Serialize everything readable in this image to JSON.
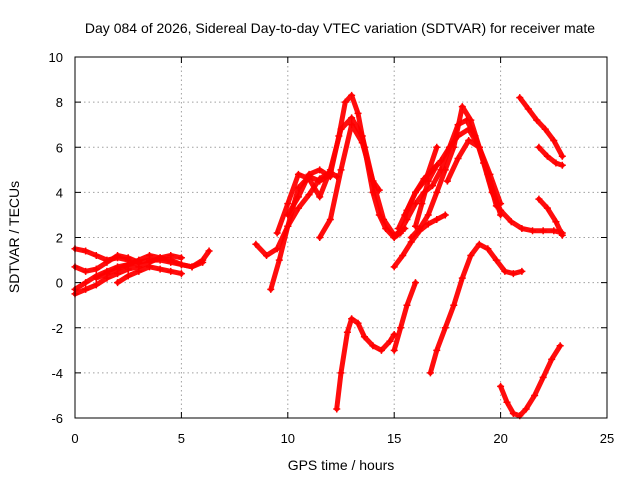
{
  "chart_data": {
    "type": "scatter",
    "title": "Day 084 of 2026, Sidereal Day-to-day VTEC variation (SDTVAR) for receiver mate",
    "xlabel": "GPS time / hours",
    "ylabel": "SDTVAR / TECUs",
    "xlim": [
      0,
      25
    ],
    "ylim": [
      -6,
      10
    ],
    "xticks": [
      0,
      5,
      10,
      15,
      20,
      25
    ],
    "yticks": [
      -6,
      -4,
      -2,
      0,
      2,
      4,
      6,
      8,
      10
    ],
    "grid": true,
    "marker": "plus",
    "color": "#ff0000",
    "series": [
      {
        "x": [
          0.0,
          0.5,
          1.0,
          1.5,
          2.0,
          2.5
        ],
        "y": [
          1.5,
          1.4,
          1.2,
          1.0,
          1.1,
          1.0
        ]
      },
      {
        "x": [
          0.0,
          0.5,
          1.0,
          1.5,
          2.0,
          2.5,
          3.0
        ],
        "y": [
          0.7,
          0.5,
          0.6,
          0.9,
          1.2,
          1.1,
          0.9
        ]
      },
      {
        "x": [
          0.0,
          0.5,
          1.0,
          1.5,
          2.0,
          2.5,
          3.0,
          3.5,
          4.0,
          4.5,
          5.0,
          5.5,
          6.0,
          6.3
        ],
        "y": [
          -0.3,
          0.0,
          0.3,
          0.5,
          0.7,
          0.8,
          0.9,
          1.0,
          1.0,
          0.9,
          0.8,
          0.7,
          1.0,
          1.4
        ]
      },
      {
        "x": [
          0.0,
          0.5,
          1.0,
          1.5,
          2.0,
          2.5,
          3.0,
          3.5,
          4.0,
          4.5,
          5.0
        ],
        "y": [
          -0.5,
          -0.3,
          -0.1,
          0.2,
          0.4,
          0.6,
          0.7,
          0.9,
          1.1,
          1.2,
          1.1
        ]
      },
      {
        "x": [
          1.0,
          1.5,
          2.0,
          2.5,
          3.0,
          3.5,
          4.0,
          4.5,
          5.0,
          5.5,
          6.0
        ],
        "y": [
          0.2,
          0.4,
          0.6,
          0.8,
          1.0,
          1.2,
          1.1,
          1.0,
          0.8,
          0.7,
          0.9
        ]
      },
      {
        "x": [
          2.0,
          2.5,
          3.0,
          3.5,
          4.0,
          4.5,
          5.0
        ],
        "y": [
          0.0,
          0.3,
          0.5,
          0.7,
          0.6,
          0.5,
          0.4
        ]
      },
      {
        "x": [
          8.5,
          9.0,
          9.5,
          10.0,
          10.5,
          11.0,
          11.5,
          12.0,
          12.3
        ],
        "y": [
          1.7,
          1.2,
          1.5,
          2.5,
          3.3,
          3.9,
          4.6,
          4.9,
          4.7
        ]
      },
      {
        "x": [
          9.2,
          9.6,
          10.0,
          10.5,
          11.0,
          11.5,
          12.0,
          12.4,
          12.7,
          13.0,
          13.3,
          13.6,
          14.0,
          14.3,
          14.6,
          15.0,
          15.3
        ],
        "y": [
          -0.3,
          1.0,
          2.5,
          4.2,
          4.7,
          4.5,
          4.8,
          6.5,
          8.0,
          8.3,
          7.5,
          6.0,
          4.0,
          3.0,
          2.4,
          2.0,
          2.2
        ]
      },
      {
        "x": [
          9.5,
          10.0,
          10.5,
          11.0,
          11.5,
          12.0,
          12.5,
          13.0,
          13.5,
          14.0,
          14.5,
          15.0,
          15.5
        ],
        "y": [
          2.2,
          3.5,
          4.8,
          4.6,
          3.8,
          5.0,
          6.8,
          7.3,
          6.5,
          4.5,
          2.8,
          2.1,
          2.4
        ]
      },
      {
        "x": [
          11.5,
          12.0,
          12.5,
          13.0,
          13.5,
          14.0,
          14.3
        ],
        "y": [
          2.0,
          2.8,
          5.0,
          7.0,
          6.2,
          4.5,
          4.1
        ]
      },
      {
        "x": [
          10.0,
          10.5,
          11.0,
          11.5,
          12.0
        ],
        "y": [
          3.0,
          3.8,
          4.8,
          5.0,
          4.7
        ]
      },
      {
        "x": [
          12.3,
          12.5,
          12.8,
          13.0,
          13.3,
          13.6,
          14.0,
          14.4,
          14.8,
          15.0
        ],
        "y": [
          -5.6,
          -4.0,
          -2.2,
          -1.6,
          -1.8,
          -2.4,
          -2.8,
          -3.0,
          -2.6,
          -2.3
        ]
      },
      {
        "x": [
          15.0,
          15.3,
          15.6,
          16.0,
          16.4,
          16.8,
          17.2,
          17.6,
          18.0,
          18.4,
          18.8,
          19.2,
          19.6,
          20.0,
          20.5,
          21.0,
          21.5,
          22.0,
          22.5,
          22.9
        ],
        "y": [
          2.0,
          2.3,
          2.8,
          3.5,
          4.0,
          4.3,
          5.0,
          6.0,
          7.0,
          7.2,
          6.5,
          5.3,
          4.0,
          3.2,
          2.7,
          2.4,
          2.3,
          2.3,
          2.3,
          2.2
        ]
      },
      {
        "x": [
          15.2,
          15.6,
          16.0,
          16.4,
          16.8,
          17.2,
          17.6,
          18.0,
          18.5,
          19.0,
          19.5,
          20.0
        ],
        "y": [
          2.4,
          3.2,
          4.0,
          4.6,
          5.0,
          5.4,
          6.0,
          6.5,
          6.8,
          6.0,
          4.5,
          3.0
        ]
      },
      {
        "x": [
          17.5,
          18.0,
          18.5,
          19.0,
          19.5,
          20.0
        ],
        "y": [
          4.5,
          5.5,
          6.3,
          6.0,
          4.8,
          3.5
        ]
      },
      {
        "x": [
          15.8,
          16.2,
          16.6,
          17.0,
          17.4,
          17.8,
          18.2,
          18.6,
          19.0,
          19.4,
          19.8
        ],
        "y": [
          2.0,
          2.4,
          3.0,
          4.0,
          5.0,
          6.0,
          7.8,
          7.2,
          6.0,
          4.8,
          3.4
        ]
      },
      {
        "x": [
          15.0,
          15.4,
          15.8,
          16.2,
          16.6,
          17.0,
          17.4
        ],
        "y": [
          0.7,
          1.2,
          1.8,
          2.3,
          2.6,
          2.8,
          3.0
        ]
      },
      {
        "x": [
          15.5,
          16.0,
          16.5,
          17.0
        ],
        "y": [
          3.0,
          4.0,
          4.6,
          6.0
        ]
      },
      {
        "x": [
          16.0,
          16.3,
          16.6,
          17.0
        ],
        "y": [
          2.5,
          3.5,
          4.5,
          5.2
        ]
      },
      {
        "x": [
          15.0,
          15.3,
          15.6,
          16.0
        ],
        "y": [
          -3.0,
          -2.0,
          -1.0,
          0.0
        ]
      },
      {
        "x": [
          16.7,
          17.0,
          17.4,
          17.8,
          18.2,
          18.6,
          19.0,
          19.4,
          19.8,
          20.2,
          20.6,
          21.0
        ],
        "y": [
          -4.0,
          -3.0,
          -2.0,
          -1.0,
          0.2,
          1.2,
          1.7,
          1.5,
          1.0,
          0.5,
          0.4,
          0.5
        ]
      },
      {
        "x": [
          20.0,
          20.3,
          20.6,
          20.9,
          21.2,
          21.6,
          22.0,
          22.4,
          22.8
        ],
        "y": [
          -4.6,
          -5.3,
          -5.8,
          -5.9,
          -5.6,
          -5.0,
          -4.2,
          -3.4,
          -2.8
        ]
      },
      {
        "x": [
          20.9,
          21.3,
          21.7,
          22.1,
          22.5,
          22.9
        ],
        "y": [
          8.2,
          7.7,
          7.2,
          6.8,
          6.3,
          5.6
        ]
      },
      {
        "x": [
          21.8,
          22.2,
          22.6,
          22.9
        ],
        "y": [
          6.0,
          5.6,
          5.3,
          5.2
        ]
      },
      {
        "x": [
          21.8,
          22.2,
          22.6,
          22.9
        ],
        "y": [
          3.7,
          3.3,
          2.7,
          2.1
        ]
      }
    ]
  }
}
